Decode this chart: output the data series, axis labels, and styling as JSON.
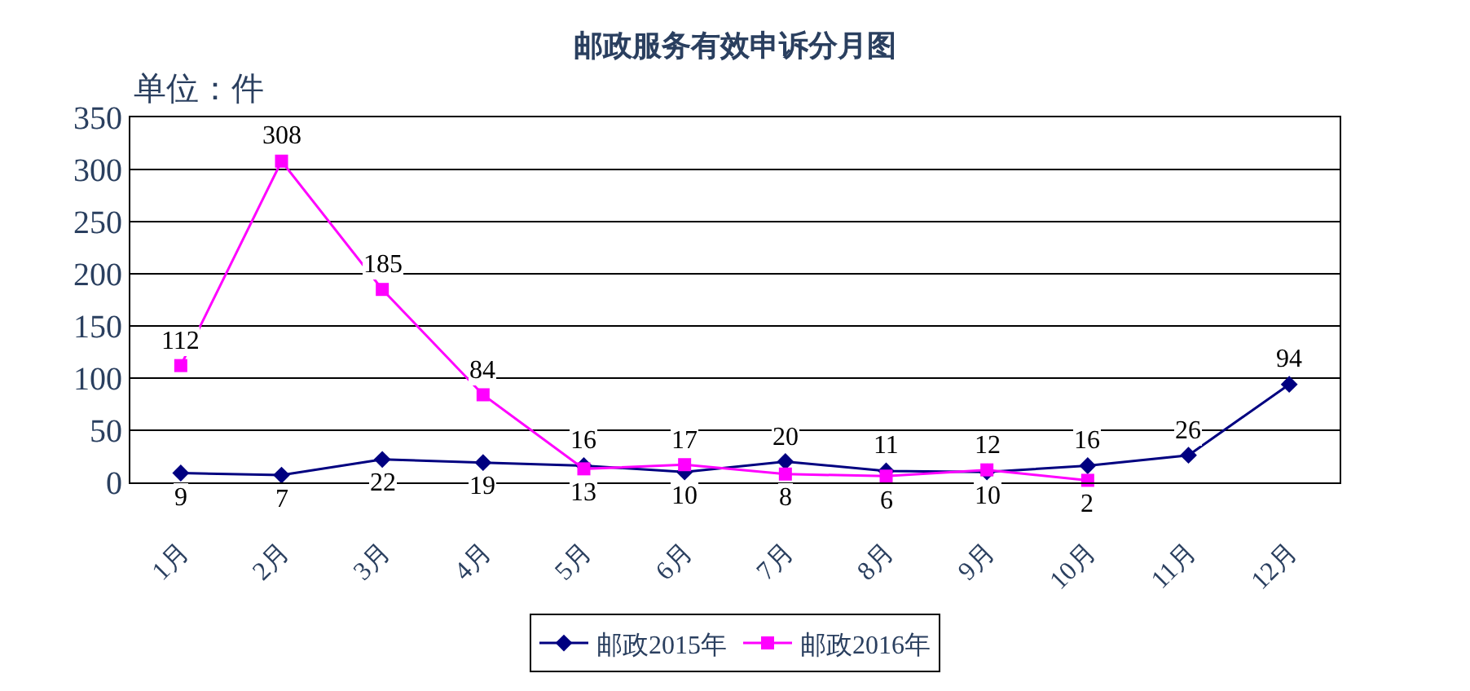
{
  "chart_data": {
    "type": "line",
    "title": "邮政服务有效申诉分月图",
    "annotations": [
      "单位：件"
    ],
    "categories": [
      "1月",
      "2月",
      "3月",
      "4月",
      "5月",
      "6月",
      "7月",
      "8月",
      "9月",
      "10月",
      "11月",
      "12月"
    ],
    "series": [
      {
        "name": "邮政2015年",
        "color": "#000080",
        "marker": "diamond",
        "values": [
          9,
          7,
          22,
          19,
          16,
          10,
          20,
          11,
          10,
          16,
          26,
          94
        ]
      },
      {
        "name": "邮政2016年",
        "color": "#ff00ff",
        "marker": "square",
        "values": [
          112,
          308,
          185,
          84,
          13,
          17,
          8,
          6,
          12,
          2,
          null,
          null
        ]
      }
    ],
    "ylim": [
      0,
      350
    ],
    "yticks": [
      0,
      50,
      100,
      150,
      200,
      250,
      300,
      350
    ],
    "grid": "y",
    "legend": "bottom",
    "data_labels": true,
    "line_style": "solid"
  }
}
